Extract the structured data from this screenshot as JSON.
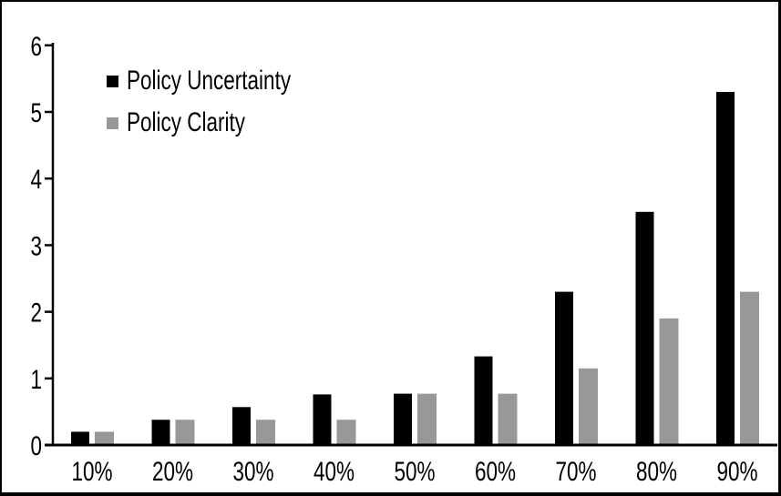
{
  "chart_data": {
    "type": "bar",
    "categories": [
      "10%",
      "20%",
      "30%",
      "40%",
      "50%",
      "60%",
      "70%",
      "80%",
      "90%"
    ],
    "series": [
      {
        "name": "Policy Uncertainty",
        "color": "#000000",
        "values": [
          0.2,
          0.38,
          0.57,
          0.76,
          0.77,
          1.33,
          2.3,
          3.5,
          5.3
        ]
      },
      {
        "name": "Policy Clarity",
        "color": "#989898",
        "values": [
          0.2,
          0.38,
          0.38,
          0.38,
          0.77,
          0.77,
          1.15,
          1.9,
          2.3
        ]
      }
    ],
    "title": "",
    "xlabel": "",
    "ylabel": "",
    "ylim": [
      0,
      6
    ],
    "yticks": [
      0,
      1,
      2,
      3,
      4,
      5,
      6
    ],
    "grid": false,
    "legend_position": "upper-left-inside",
    "axis_color": "#000000",
    "background": "#ffffff",
    "border_color": "#000000"
  }
}
